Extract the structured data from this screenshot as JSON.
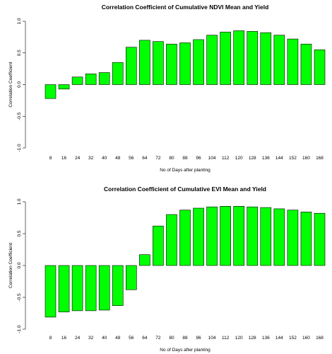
{
  "chart_data": [
    {
      "type": "bar",
      "title": "Correlation Coefficient of Cumulative NDVI Mean and Yield",
      "xlabel": "No of Days after planting",
      "ylabel": "Correlation Coefficient",
      "ylim": [
        -1.0,
        1.0
      ],
      "yticks": [
        "-1.0",
        "-0.5",
        "0.0",
        "0.5",
        "1.0"
      ],
      "grid": false,
      "bar_color": "#00ff00",
      "categories": [
        "8",
        "16",
        "24",
        "32",
        "40",
        "48",
        "56",
        "64",
        "72",
        "80",
        "88",
        "96",
        "104",
        "112",
        "120",
        "128",
        "136",
        "144",
        "152",
        "160",
        "168"
      ],
      "values": [
        -0.22,
        -0.07,
        0.12,
        0.17,
        0.19,
        0.35,
        0.59,
        0.7,
        0.68,
        0.64,
        0.66,
        0.71,
        0.78,
        0.83,
        0.85,
        0.84,
        0.82,
        0.78,
        0.72,
        0.64,
        0.55
      ]
    },
    {
      "type": "bar",
      "title": "Correlation Coefficient of Cumulative EVI Mean and Yield",
      "xlabel": "No of Days after planting",
      "ylabel": "Correlation Coefficient",
      "ylim": [
        -1.0,
        1.0
      ],
      "yticks": [
        "-1.0",
        "-0.5",
        "0.0",
        "0.5",
        "1.0"
      ],
      "grid": false,
      "bar_color": "#00ff00",
      "categories": [
        "8",
        "16",
        "24",
        "32",
        "40",
        "48",
        "56",
        "64",
        "72",
        "80",
        "88",
        "96",
        "104",
        "112",
        "120",
        "128",
        "136",
        "144",
        "152",
        "160",
        "168"
      ],
      "values": [
        -0.81,
        -0.73,
        -0.71,
        -0.71,
        -0.7,
        -0.63,
        -0.38,
        0.17,
        0.62,
        0.8,
        0.87,
        0.9,
        0.92,
        0.93,
        0.93,
        0.92,
        0.91,
        0.89,
        0.87,
        0.84,
        0.82
      ]
    }
  ]
}
